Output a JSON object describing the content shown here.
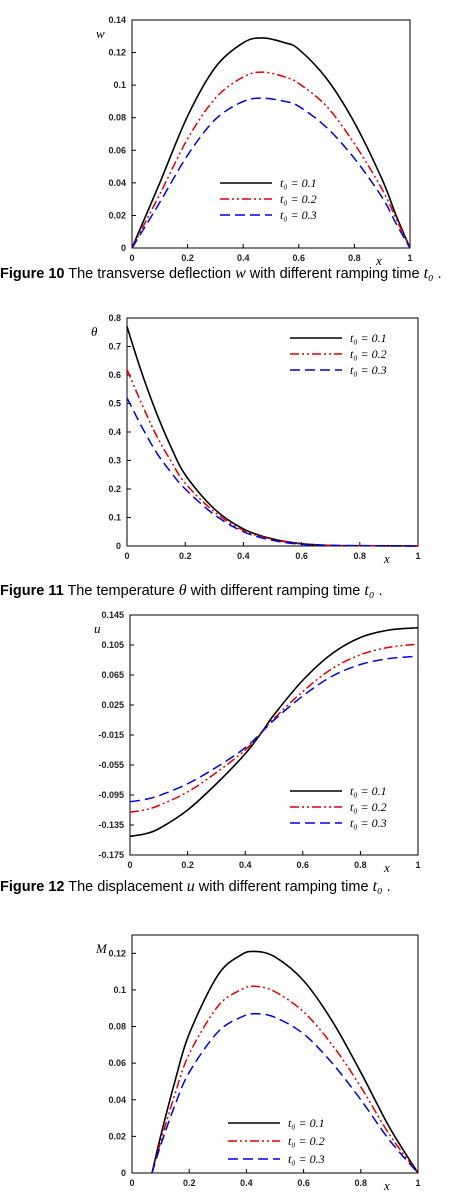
{
  "captions": [
    {
      "label": "Figure 10",
      "text": "The transverse deflection",
      "symbol": "w",
      "rest": "with different ramping time",
      "sub": "t₀",
      "end": "."
    },
    {
      "label": "Figure 11",
      "text": "The temperature",
      "symbol": "θ",
      "rest": "with different ramping time",
      "sub": "t₀",
      "end": "."
    },
    {
      "label": "Figure 12",
      "text": "The displacement",
      "symbol": "u",
      "rest": "with different ramping time",
      "sub": "t₀",
      "end": "."
    }
  ],
  "chart_data": [
    {
      "type": "line",
      "ylabel": "w",
      "xlabel": "x",
      "xlim": [
        0,
        1
      ],
      "ylim": [
        0,
        0.14
      ],
      "x_ticks": [
        "0",
        "0.2",
        "0.4",
        "0.6",
        "0.8",
        "1"
      ],
      "y_ticks": [
        "0",
        "0.02",
        "0.04",
        "0.06",
        "0.08",
        "0.1",
        "0.12",
        "0.14"
      ],
      "legend_position": "bottom-center",
      "series": [
        {
          "name": "t₀ = 0.1",
          "color": "#000000",
          "style": "solid",
          "x": [
            0,
            0.1,
            0.2,
            0.3,
            0.4,
            0.47,
            0.55,
            0.6,
            0.7,
            0.8,
            0.9,
            0.95,
            1
          ],
          "y": [
            0,
            0.04,
            0.081,
            0.111,
            0.126,
            0.129,
            0.126,
            0.122,
            0.104,
            0.077,
            0.042,
            0.02,
            0
          ]
        },
        {
          "name": "t₀ = 0.2",
          "color": "#e00000",
          "style": "dashdotdot",
          "x": [
            0,
            0.1,
            0.2,
            0.3,
            0.4,
            0.47,
            0.55,
            0.6,
            0.7,
            0.8,
            0.9,
            0.95,
            1
          ],
          "y": [
            0,
            0.033,
            0.067,
            0.092,
            0.105,
            0.108,
            0.105,
            0.101,
            0.087,
            0.064,
            0.036,
            0.018,
            0
          ]
        },
        {
          "name": "t₀ = 0.3",
          "color": "#0000dd",
          "style": "dashed",
          "x": [
            0,
            0.1,
            0.2,
            0.3,
            0.4,
            0.47,
            0.55,
            0.6,
            0.7,
            0.8,
            0.9,
            0.95,
            1
          ],
          "y": [
            0,
            0.028,
            0.057,
            0.079,
            0.09,
            0.092,
            0.09,
            0.087,
            0.074,
            0.055,
            0.031,
            0.015,
            0
          ]
        }
      ]
    },
    {
      "type": "line",
      "ylabel": "θ",
      "xlabel": "x",
      "xlim": [
        0,
        1
      ],
      "ylim": [
        0,
        0.8
      ],
      "x_ticks": [
        "0",
        "0.2",
        "0.4",
        "0.6",
        "0.8",
        "1"
      ],
      "y_ticks": [
        "0",
        "0.1",
        "0.2",
        "0.3",
        "0.4",
        "0.5",
        "0.6",
        "0.7",
        "0.8"
      ],
      "legend_position": "top-right",
      "series": [
        {
          "name": "t₀ = 0.1",
          "color": "#000000",
          "style": "solid",
          "x": [
            0,
            0.05,
            0.1,
            0.15,
            0.2,
            0.3,
            0.4,
            0.5,
            0.6,
            0.7,
            0.8,
            1
          ],
          "y": [
            0.77,
            0.61,
            0.47,
            0.35,
            0.25,
            0.13,
            0.06,
            0.025,
            0.008,
            0.002,
            0.001,
            0
          ]
        },
        {
          "name": "t₀ = 0.2",
          "color": "#e00000",
          "style": "dashdotdot",
          "x": [
            0,
            0.05,
            0.1,
            0.15,
            0.2,
            0.3,
            0.4,
            0.5,
            0.6,
            0.7,
            0.8,
            1
          ],
          "y": [
            0.62,
            0.5,
            0.39,
            0.3,
            0.22,
            0.12,
            0.055,
            0.023,
            0.007,
            0.002,
            0.001,
            0
          ]
        },
        {
          "name": "t₀ = 0.3",
          "color": "#0000dd",
          "style": "dashed",
          "x": [
            0,
            0.05,
            0.1,
            0.15,
            0.2,
            0.3,
            0.4,
            0.5,
            0.6,
            0.7,
            0.8,
            1
          ],
          "y": [
            0.52,
            0.42,
            0.33,
            0.26,
            0.2,
            0.11,
            0.05,
            0.02,
            0.006,
            0.002,
            0.001,
            0
          ]
        }
      ]
    },
    {
      "type": "line",
      "ylabel": "u",
      "xlabel": "x",
      "xlim": [
        0,
        1
      ],
      "ylim": [
        -0.175,
        0.145
      ],
      "x_ticks": [
        "0",
        "0.2",
        "0.4",
        "0.6",
        "0.8",
        "1"
      ],
      "y_ticks": [
        "-0.175",
        "-0.135",
        "-0.095",
        "-0.055",
        "-0.015",
        "0.025",
        "0.065",
        "0.105",
        "0.145"
      ],
      "legend_position": "bottom-right",
      "series": [
        {
          "name": "t₀ = 0.1",
          "color": "#000000",
          "style": "solid",
          "x": [
            0,
            0.05,
            0.1,
            0.2,
            0.3,
            0.4,
            0.46,
            0.5,
            0.6,
            0.7,
            0.8,
            0.9,
            1
          ],
          "y": [
            -0.15,
            -0.147,
            -0.14,
            -0.115,
            -0.08,
            -0.04,
            -0.01,
            0.012,
            0.058,
            0.093,
            0.115,
            0.125,
            0.128
          ]
        },
        {
          "name": "t₀ = 0.2",
          "color": "#e00000",
          "style": "dashdotdot",
          "x": [
            0,
            0.05,
            0.1,
            0.2,
            0.3,
            0.4,
            0.46,
            0.5,
            0.6,
            0.7,
            0.8,
            0.9,
            1
          ],
          "y": [
            -0.118,
            -0.115,
            -0.109,
            -0.091,
            -0.065,
            -0.035,
            -0.01,
            0.007,
            0.043,
            0.073,
            0.092,
            0.102,
            0.106
          ]
        },
        {
          "name": "t₀ = 0.3",
          "color": "#0000dd",
          "style": "dashed",
          "x": [
            0,
            0.05,
            0.1,
            0.2,
            0.3,
            0.4,
            0.46,
            0.5,
            0.6,
            0.7,
            0.8,
            0.9,
            1
          ],
          "y": [
            -0.104,
            -0.101,
            -0.096,
            -0.08,
            -0.058,
            -0.032,
            -0.01,
            0.005,
            0.037,
            0.063,
            0.079,
            0.087,
            0.09
          ]
        }
      ]
    },
    {
      "type": "line",
      "ylabel": "M",
      "xlabel": "x",
      "xlim": [
        0,
        1
      ],
      "ylim": [
        0,
        0.13
      ],
      "x_ticks": [
        "0",
        "0.2",
        "0.4",
        "0.6",
        "0.8",
        "1"
      ],
      "y_ticks": [
        "0",
        "0.02",
        "0.04",
        "0.06",
        "0.08",
        "0.1",
        "0.12"
      ],
      "legend_position": "bottom-center",
      "series": [
        {
          "name": "t₀ = 0.1",
          "color": "#000000",
          "style": "solid",
          "x": [
            0.07,
            0.1,
            0.15,
            0.2,
            0.3,
            0.38,
            0.43,
            0.5,
            0.6,
            0.7,
            0.8,
            0.9,
            1
          ],
          "y": [
            0,
            0.02,
            0.05,
            0.076,
            0.108,
            0.119,
            0.121,
            0.118,
            0.105,
            0.083,
            0.055,
            0.025,
            0
          ]
        },
        {
          "name": "t₀ = 0.2",
          "color": "#e00000",
          "style": "dashdotdot",
          "x": [
            0.07,
            0.1,
            0.15,
            0.2,
            0.3,
            0.38,
            0.43,
            0.5,
            0.6,
            0.7,
            0.8,
            0.9,
            1
          ],
          "y": [
            0,
            0.017,
            0.043,
            0.065,
            0.091,
            0.1,
            0.102,
            0.099,
            0.088,
            0.07,
            0.047,
            0.021,
            0
          ]
        },
        {
          "name": "t₀ = 0.3",
          "color": "#0000dd",
          "style": "dashed",
          "x": [
            0.07,
            0.1,
            0.15,
            0.2,
            0.3,
            0.38,
            0.43,
            0.5,
            0.6,
            0.7,
            0.8,
            0.9,
            1
          ],
          "y": [
            0,
            0.015,
            0.037,
            0.055,
            0.077,
            0.085,
            0.087,
            0.085,
            0.076,
            0.06,
            0.04,
            0.018,
            0
          ]
        }
      ]
    }
  ]
}
